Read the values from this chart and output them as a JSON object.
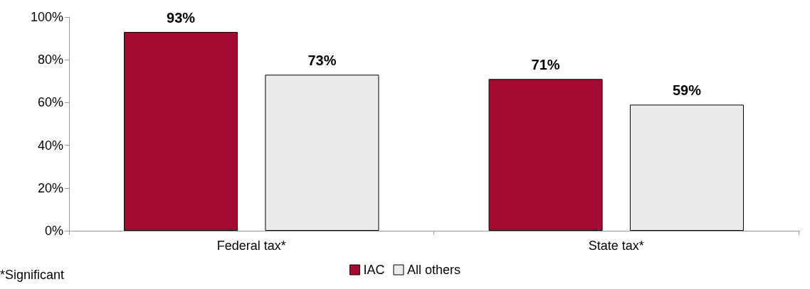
{
  "chart_data": {
    "type": "bar",
    "categories": [
      "Federal tax*",
      "State tax*"
    ],
    "series": [
      {
        "name": "IAC",
        "color": "#a50a33",
        "values": [
          93,
          71
        ],
        "value_labels": [
          "93%",
          "71%"
        ]
      },
      {
        "name": "All others",
        "color": "#ebebeb",
        "values": [
          73,
          59
        ],
        "value_labels": [
          "73%",
          "59%"
        ]
      }
    ],
    "ylim": [
      0,
      100
    ],
    "yticks": [
      {
        "value": 0,
        "label": "0%"
      },
      {
        "value": 20,
        "label": "20%"
      },
      {
        "value": 40,
        "label": "40%"
      },
      {
        "value": 60,
        "label": "60%"
      },
      {
        "value": 80,
        "label": "80%"
      },
      {
        "value": 100,
        "label": "100%"
      }
    ],
    "grid": false,
    "legend": "bottom",
    "annotations": [
      "*Significant"
    ]
  }
}
